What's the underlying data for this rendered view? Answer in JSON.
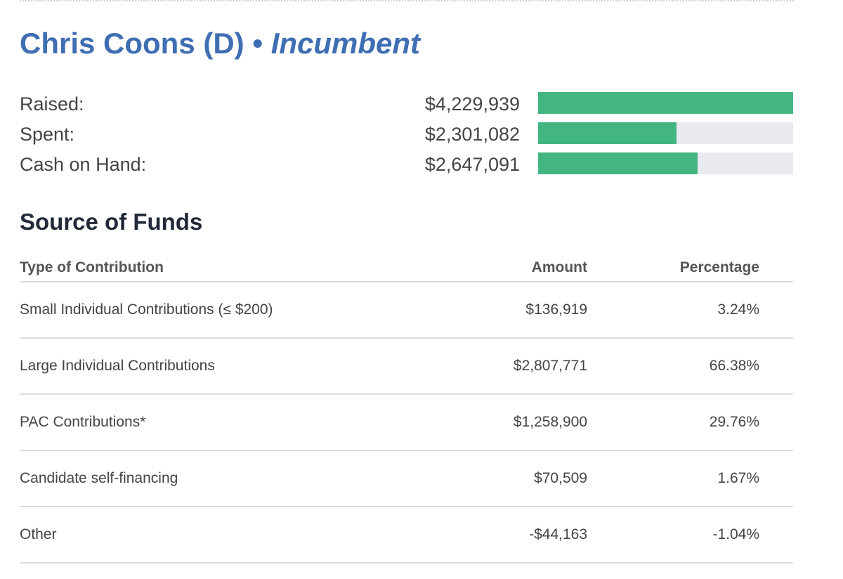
{
  "candidate": {
    "name": "Chris Coons (D)",
    "separator": " • ",
    "status": "Incumbent"
  },
  "finances": [
    {
      "label": "Raised:",
      "value": "$4,229,939",
      "ratio": 1.0
    },
    {
      "label": "Spent:",
      "value": "$2,301,082",
      "ratio": 0.544
    },
    {
      "label": "Cash on Hand:",
      "value": "$2,647,091",
      "ratio": 0.626
    }
  ],
  "colors": {
    "accent_blue": "#3f6eb3",
    "bar_fill": "#43b581",
    "bar_track": "#e9e9f0"
  },
  "source_of_funds": {
    "title": "Source of Funds",
    "headers": {
      "type": "Type of Contribution",
      "amount": "Amount",
      "percentage": "Percentage"
    },
    "rows": [
      {
        "type": "Small Individual Contributions (≤ $200)",
        "amount": "$136,919",
        "percentage": "3.24%"
      },
      {
        "type": "Large Individual Contributions",
        "amount": "$2,807,771",
        "percentage": "66.38%"
      },
      {
        "type": "PAC Contributions*",
        "amount": "$1,258,900",
        "percentage": "29.76%"
      },
      {
        "type": "Candidate self-financing",
        "amount": "$70,509",
        "percentage": "1.67%"
      },
      {
        "type": "Other",
        "amount": "-$44,163",
        "percentage": "-1.04%"
      }
    ]
  }
}
